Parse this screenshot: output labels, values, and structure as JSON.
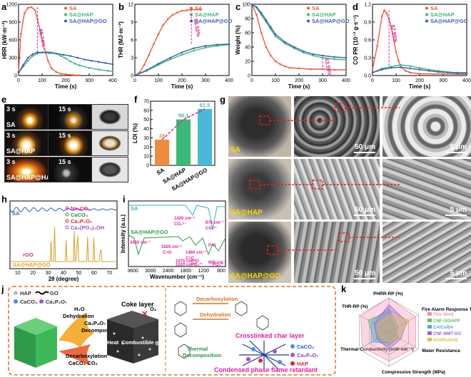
{
  "panel_labels": {
    "a": "a",
    "b": "b",
    "c": "c",
    "d": "d",
    "e": "e",
    "f": "f",
    "g": "g",
    "h": "h",
    "i": "i",
    "j": "j",
    "k": "k"
  },
  "colors": {
    "sa": "#f05a3c",
    "hap": "#3cb878",
    "go": "#3a5fb0",
    "pink": "#e0209a",
    "orange": "#f08a3c"
  },
  "chart_data": [
    {
      "id": "a",
      "type": "line",
      "xlabel": "Time (s)",
      "ylabel": "HRR (kW·m⁻²)",
      "xlim": [
        0,
        400
      ],
      "ylim": [
        0,
        1200
      ],
      "xticks": [
        "0",
        "100",
        "200",
        "300",
        "400"
      ],
      "yticks": [
        "0",
        "300",
        "600",
        "900",
        "1200"
      ],
      "legend": [
        "SA",
        "SA@HAP",
        "SA@HAP@GO"
      ],
      "annotation": "65.74%",
      "series": [
        {
          "name": "SA",
          "x": [
            0,
            10,
            25,
            40,
            55,
            70,
            80,
            95,
            110,
            125,
            140,
            160,
            180,
            200,
            230,
            260
          ],
          "y": [
            60,
            700,
            1050,
            1140,
            1150,
            1100,
            950,
            700,
            450,
            250,
            120,
            60,
            30,
            20,
            10,
            5
          ]
        },
        {
          "name": "SA@HAP",
          "x": [
            0,
            20,
            40,
            60,
            80,
            100,
            120,
            140,
            160,
            180,
            200,
            220,
            240,
            260,
            300,
            340,
            380,
            400
          ],
          "y": [
            50,
            150,
            250,
            330,
            370,
            390,
            395,
            390,
            370,
            330,
            290,
            240,
            200,
            170,
            130,
            100,
            80,
            70
          ]
        },
        {
          "name": "SA@HAP@GO",
          "x": [
            0,
            20,
            40,
            60,
            80,
            100,
            130,
            160,
            190,
            220,
            250,
            280,
            310,
            340,
            370,
            400
          ],
          "y": [
            50,
            180,
            300,
            360,
            390,
            390,
            380,
            370,
            350,
            330,
            300,
            270,
            250,
            230,
            210,
            190
          ]
        }
      ]
    },
    {
      "id": "b",
      "type": "line",
      "xlabel": "Time (s)",
      "ylabel": "THR (MJ·m⁻²)",
      "xlim": [
        0,
        400
      ],
      "ylim": [
        0,
        12
      ],
      "xticks": [
        "0",
        "100",
        "200",
        "300",
        "400"
      ],
      "yticks": [
        "0",
        "3",
        "6",
        "9",
        "12"
      ],
      "legend": [
        "SA",
        "SA@HAP",
        "SA@HAP@GO"
      ],
      "annotation": "53.52%",
      "series": [
        {
          "name": "SA",
          "x": [
            0,
            20,
            40,
            60,
            80,
            100,
            120,
            140,
            160,
            180,
            200,
            220,
            240,
            260,
            280
          ],
          "y": [
            0,
            0.5,
            1.8,
            3.5,
            5.3,
            7,
            8.5,
            9.5,
            10.2,
            10.6,
            10.9,
            11,
            11.1,
            11.1,
            11.1
          ]
        },
        {
          "name": "SA@HAP",
          "x": [
            0,
            50,
            100,
            150,
            200,
            250,
            300,
            350,
            400
          ],
          "y": [
            0,
            0.8,
            1.8,
            2.7,
            3.5,
            4.2,
            4.7,
            5,
            5.2
          ]
        },
        {
          "name": "SA@HAP@GO",
          "x": [
            0,
            50,
            100,
            150,
            200,
            250,
            300,
            350,
            400
          ],
          "y": [
            0,
            0.9,
            2.0,
            3.0,
            3.9,
            4.6,
            5.0,
            5.2,
            5.3
          ]
        }
      ]
    },
    {
      "id": "c",
      "type": "line",
      "xlabel": "Time (s)",
      "ylabel": "Weight (%)",
      "xlim": [
        0,
        400
      ],
      "ylim": [
        0,
        100
      ],
      "xticks": [
        "0",
        "100",
        "200",
        "300",
        "400"
      ],
      "yticks": [
        "0",
        "20",
        "40",
        "60",
        "80",
        "100"
      ],
      "legend": [
        "SA",
        "SA@HAP",
        "SA@HAP@GO"
      ],
      "annotation": "53.59%",
      "series": [
        {
          "name": "SA",
          "x": [
            0,
            20,
            40,
            60,
            80,
            100,
            120,
            140,
            160,
            200,
            250,
            300,
            350,
            400
          ],
          "y": [
            100,
            85,
            60,
            40,
            28,
            20,
            16,
            13,
            11,
            10,
            9,
            9,
            8,
            8
          ]
        },
        {
          "name": "SA@HAP",
          "x": [
            0,
            20,
            40,
            60,
            80,
            100,
            140,
            180,
            220,
            260,
            300,
            350,
            400
          ],
          "y": [
            100,
            95,
            85,
            75,
            65,
            55,
            45,
            38,
            32,
            28,
            25,
            23,
            22
          ]
        },
        {
          "name": "SA@HAP@GO",
          "x": [
            0,
            20,
            40,
            60,
            80,
            100,
            140,
            180,
            220,
            260,
            300,
            350,
            400
          ],
          "y": [
            100,
            96,
            88,
            78,
            68,
            58,
            47,
            40,
            34,
            30,
            28,
            26,
            25
          ]
        }
      ]
    },
    {
      "id": "d",
      "type": "line",
      "xlabel": "Time (s)",
      "ylabel": "CO PR (10⁻² g·s⁻¹)",
      "xlim": [
        0,
        400
      ],
      "ylim": [
        0,
        1.2
      ],
      "xticks": [
        "0",
        "100",
        "200",
        "300",
        "400"
      ],
      "yticks": [
        "0.0",
        "0.3",
        "0.6",
        "0.9",
        "1.2"
      ],
      "legend": [
        "SA",
        "SA@HAP",
        "SA@HAP@GO"
      ],
      "annotation": "87.85%",
      "series": [
        {
          "name": "SA",
          "x": [
            0,
            20,
            40,
            50,
            60,
            70,
            80,
            90,
            100,
            110,
            120,
            140,
            160,
            200,
            400
          ],
          "y": [
            0.1,
            0.5,
            1.0,
            1.1,
            1.05,
            0.95,
            0.8,
            0.6,
            0.4,
            0.25,
            0.15,
            0.08,
            0.05,
            0.03,
            0.02
          ]
        },
        {
          "name": "SA@HAP",
          "x": [
            0,
            40,
            80,
            120,
            160,
            200,
            240,
            280,
            320,
            360,
            400
          ],
          "y": [
            0.05,
            0.12,
            0.15,
            0.18,
            0.16,
            0.13,
            0.1,
            0.08,
            0.06,
            0.05,
            0.05
          ]
        },
        {
          "name": "SA@HAP@GO",
          "x": [
            0,
            40,
            80,
            120,
            160,
            200,
            240,
            280,
            320,
            360,
            400
          ],
          "y": [
            0.05,
            0.1,
            0.13,
            0.14,
            0.12,
            0.1,
            0.08,
            0.06,
            0.05,
            0.04,
            0.04
          ]
        }
      ]
    },
    {
      "id": "f",
      "type": "bar",
      "ylabel": "LOI (%)",
      "categories": [
        "SA",
        "SA@HAP",
        "SA@HAP@GO"
      ],
      "values": [
        28,
        50.1,
        61.5
      ],
      "labels": [
        "28",
        "50.1",
        "61.5"
      ],
      "ylim": [
        0,
        70
      ],
      "yticks": [
        "0",
        "10",
        "20",
        "30",
        "40",
        "50",
        "60",
        "70"
      ]
    },
    {
      "id": "k",
      "type": "radar",
      "axes": [
        "PHRR-RP (%)",
        "Fire Alarm Response Time (s)",
        "Water Resistance",
        "Compressive Strength (MPa)",
        "Thermal Conductivity (mW·mK⁻¹)",
        "THR-RP (%)"
      ],
      "legend": [
        "This Work",
        "CNF-GO/APP",
        "CA/Cs/BA",
        "CNF-MMT-GO",
        "NAHRs/SAB"
      ]
    }
  ],
  "panel_e": {
    "times": [
      "3 s",
      "15 s",
      "3 s",
      "15 s",
      "3 s",
      "15 s"
    ],
    "samples": [
      "SA",
      "SA@HAP",
      "SA@HAP@HAP"
    ]
  },
  "panel_g": {
    "samples": [
      "SA",
      "SA@HAP",
      "SA@HAP@GO"
    ],
    "scales": [
      "50 μm",
      "5 μm"
    ]
  },
  "panel_h": {
    "xlabel": "2θ (degree)",
    "xticks": [
      "10",
      "20",
      "30",
      "40",
      "50",
      "60",
      "70"
    ],
    "traces": [
      "SA",
      "rGO",
      "SA@HAP@GO"
    ],
    "legend": [
      "Na₂CO₃",
      "CaCO₃",
      "Ca₂P₂O₇",
      "Ca₅(PO₄)₃OH"
    ]
  },
  "panel_i": {
    "xlabel": "Wavenumber (cm⁻¹)",
    "ylabel": "Intensity (a.u.)",
    "xticks": [
      "3600",
      "3000",
      "2400",
      "1800",
      "1200",
      "800"
    ],
    "traces": [
      "SA",
      "SA@HAP@GO"
    ],
    "peaks": [
      "3450 cm⁻¹",
      "1420 cm⁻¹",
      "CO₃²⁻",
      "876 cm⁻¹",
      "CO₃²⁻",
      "1625 cm⁻¹",
      "C=O",
      "1460 cm⁻¹",
      "C=C",
      "1075 cm⁻¹",
      "P-O",
      "1020 cm⁻¹",
      "PO₄³⁻",
      "600 cm⁻¹",
      "P-O",
      "PO₄³⁻"
    ]
  },
  "panel_j": {
    "legend": [
      "HAP",
      "GO",
      "CaCO₃",
      "Ca₂P₂O₇"
    ],
    "labels": [
      "H₂O",
      "Dehydration",
      "Ca₂P₂O₇",
      "Decomposition",
      "Decarboxylation",
      "CaCO₃  CO₂",
      "Heat",
      "Combustible gas",
      "Coke layer",
      "O₂",
      "Decarboxylation",
      "Dehydration",
      "Crosslinked char layer",
      "Thermal",
      "Decomposition",
      "Condensed phase flame retardant",
      "CaCO₃",
      "Ca₂P₂O₇",
      "HAP"
    ]
  }
}
